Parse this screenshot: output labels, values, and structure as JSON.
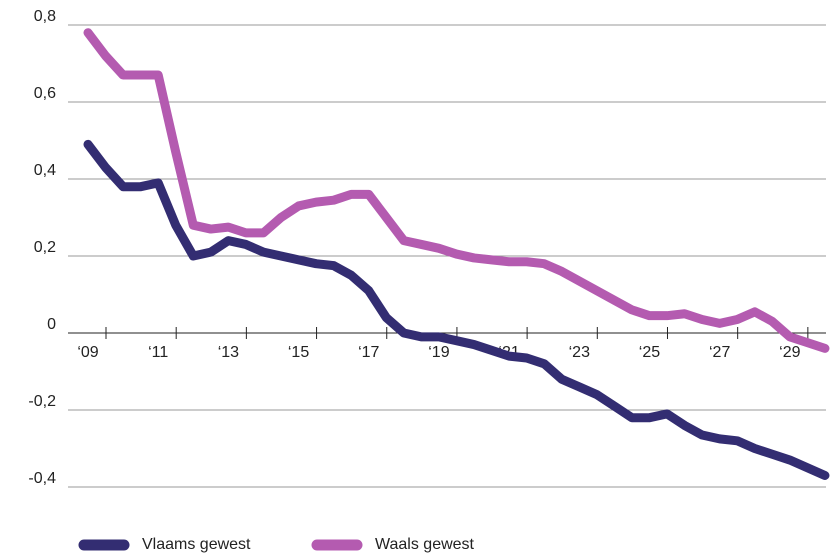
{
  "chart_data": {
    "type": "line",
    "x": [
      2009,
      2009.5,
      2010,
      2010.5,
      2011,
      2011.5,
      2012,
      2012.5,
      2013,
      2013.5,
      2014,
      2014.5,
      2015,
      2015.5,
      2016,
      2016.5,
      2017,
      2017.5,
      2018,
      2018.5,
      2019,
      2019.5,
      2020,
      2020.5,
      2021,
      2021.5,
      2022,
      2022.5,
      2023,
      2023.5,
      2024,
      2024.5,
      2025,
      2025.5,
      2026,
      2026.5,
      2027,
      2027.5,
      2028,
      2028.5,
      2029,
      2029.5,
      2030
    ],
    "series": [
      {
        "name": "Vlaams gewest",
        "color": "#332d72",
        "values": [
          0.49,
          0.43,
          0.38,
          0.38,
          0.39,
          0.28,
          0.2,
          0.21,
          0.24,
          0.23,
          0.21,
          0.2,
          0.19,
          0.18,
          0.175,
          0.15,
          0.11,
          0.04,
          0.0,
          -0.01,
          -0.01,
          -0.02,
          -0.03,
          -0.045,
          -0.06,
          -0.065,
          -0.08,
          -0.12,
          -0.14,
          -0.16,
          -0.19,
          -0.22,
          -0.22,
          -0.21,
          -0.24,
          -0.265,
          -0.275,
          -0.28,
          -0.3,
          -0.315,
          -0.33,
          -0.35,
          -0.37
        ]
      },
      {
        "name": "Waals gewest",
        "color": "#b45bb0",
        "values": [
          0.78,
          0.72,
          0.67,
          0.67,
          0.67,
          0.47,
          0.28,
          0.27,
          0.275,
          0.26,
          0.26,
          0.3,
          0.33,
          0.34,
          0.345,
          0.36,
          0.36,
          0.3,
          0.24,
          0.23,
          0.22,
          0.205,
          0.195,
          0.19,
          0.185,
          0.185,
          0.18,
          0.16,
          0.135,
          0.11,
          0.085,
          0.06,
          0.045,
          0.045,
          0.05,
          0.035,
          0.025,
          0.035,
          0.055,
          0.03,
          -0.01,
          -0.025,
          -0.04
        ]
      }
    ],
    "xlim": [
      2008.43,
      2030.03
    ],
    "xticks": [
      {
        "value": 2009,
        "label": "‘09"
      },
      {
        "value": 2011,
        "label": "‘11"
      },
      {
        "value": 2013,
        "label": "‘13"
      },
      {
        "value": 2015,
        "label": "‘15"
      },
      {
        "value": 2017,
        "label": "‘17"
      },
      {
        "value": 2019,
        "label": "‘19"
      },
      {
        "value": 2021,
        "label": "‘21"
      },
      {
        "value": 2023,
        "label": "‘23"
      },
      {
        "value": 2025,
        "label": "‘25"
      },
      {
        "value": 2027,
        "label": "‘27"
      },
      {
        "value": 2029,
        "label": "‘29"
      }
    ],
    "ylim": [
      -0.4,
      0.8
    ],
    "yticks": [
      {
        "value": -0.4,
        "label": "-0,4"
      },
      {
        "value": -0.2,
        "label": "-0,2"
      },
      0,
      {
        "value": 0.2,
        "label": "0,2"
      },
      {
        "value": 0.4,
        "label": "0,4"
      },
      {
        "value": 0.6,
        "label": "0,6"
      },
      {
        "value": 0.8,
        "label": "0,8"
      }
    ],
    "grid": true
  }
}
